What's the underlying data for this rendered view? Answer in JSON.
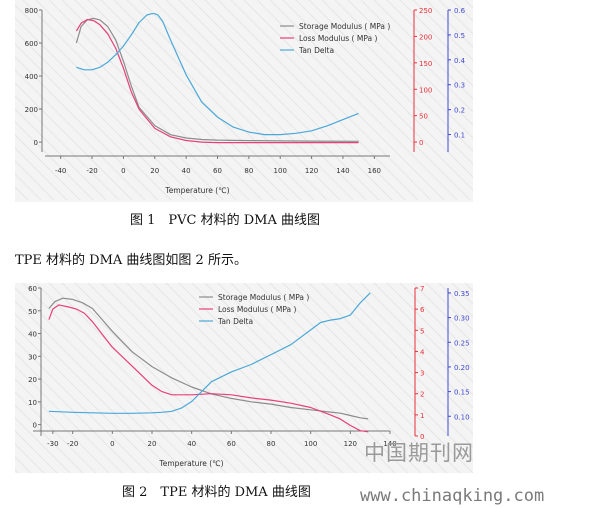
{
  "document": {
    "caption_1": "图 1　PVC 材料的 DMA 曲线图",
    "paragraph": "TPE 材料的 DMA 曲线图如图 2 所示。",
    "caption_2": "图 2　TPE 材料的 DMA 曲线图"
  },
  "watermark": {
    "site_cn": "中国期刊网",
    "site_url": "www.chinaqking.com"
  },
  "colors": {
    "storage": "#8c8c8c",
    "loss": "#e8407a",
    "tan": "#4aa8d8",
    "axis_red": "#e8303a",
    "axis_blue": "#4048d0"
  },
  "chart_data": [
    {
      "type": "line",
      "xlabel": "Temperature (℃)",
      "xlim": [
        -50,
        170
      ],
      "xticks": [
        "-40",
        "-20",
        "0",
        "20",
        "40",
        "60",
        "80",
        "100",
        "120",
        "140",
        "160"
      ],
      "left_axis": {
        "ylim": [
          -60,
          800
        ],
        "ticks": [
          "0",
          "200",
          "400",
          "600",
          "800"
        ]
      },
      "right_axis_1": {
        "ylim": [
          -18.75,
          250
        ],
        "ticks": [
          "0",
          "50",
          "100",
          "150",
          "200",
          "250"
        ]
      },
      "right_axis_2": {
        "ylim": [
          0.03,
          0.6
        ],
        "ticks": [
          "0.1",
          "0.2",
          "0.3",
          "0.4",
          "0.5",
          "0.6"
        ]
      },
      "series": [
        {
          "name": "Storage Modulus ( MPa )",
          "axis": "left",
          "x": [
            -30,
            -27,
            -23,
            -19,
            -15,
            -10,
            -5,
            0,
            5,
            10,
            20,
            30,
            40,
            50,
            60,
            80,
            100,
            120,
            150
          ],
          "values": [
            600,
            700,
            740,
            750,
            740,
            700,
            620,
            490,
            340,
            210,
            100,
            45,
            25,
            16,
            12,
            9,
            7,
            6,
            5
          ]
        },
        {
          "name": "Loss Modulus ( MPa )",
          "axis": "right_axis_1",
          "x": [
            -30,
            -27,
            -23,
            -19,
            -15,
            -10,
            -5,
            0,
            5,
            10,
            20,
            30,
            40,
            50,
            60,
            80,
            100,
            120,
            150
          ],
          "values": [
            210,
            225,
            232,
            230,
            222,
            205,
            178,
            140,
            95,
            62,
            26,
            10,
            3,
            0,
            -1,
            -1,
            -1,
            -1,
            -1
          ]
        },
        {
          "name": "Tan Delta",
          "axis": "right_axis_2",
          "x": [
            -30,
            -25,
            -20,
            -15,
            -10,
            -5,
            0,
            5,
            10,
            15,
            18,
            20,
            22,
            25,
            30,
            40,
            50,
            60,
            70,
            80,
            90,
            100,
            110,
            120,
            130,
            140,
            150
          ],
          "values": [
            0.37,
            0.36,
            0.36,
            0.37,
            0.39,
            0.42,
            0.455,
            0.5,
            0.55,
            0.58,
            0.585,
            0.585,
            0.58,
            0.555,
            0.48,
            0.34,
            0.23,
            0.17,
            0.13,
            0.11,
            0.1,
            0.1,
            0.105,
            0.115,
            0.135,
            0.16,
            0.185
          ]
        }
      ]
    },
    {
      "type": "line",
      "xlabel": "Temperature (℃)",
      "xlim": [
        -40,
        140
      ],
      "xticks": [
        "-30",
        "-20",
        "0",
        "20",
        "40",
        "60",
        "80",
        "100",
        "120",
        "140"
      ],
      "left_axis": {
        "ylim": [
          -5,
          60
        ],
        "ticks": [
          "0",
          "10",
          "20",
          "30",
          "40",
          "50",
          "60"
        ]
      },
      "right_axis_1": {
        "ylim": [
          0,
          7
        ],
        "ticks": [
          "0",
          "1",
          "2",
          "3",
          "4",
          "5",
          "6",
          "7"
        ]
      },
      "right_axis_2": {
        "ylim": [
          0.06,
          0.36
        ],
        "ticks": [
          "0.10",
          "0.15",
          "0.20",
          "0.25",
          "0.30",
          "0.35"
        ]
      },
      "series": [
        {
          "name": "Storage Modulus ( MPa )",
          "axis": "left",
          "x": [
            -32,
            -29,
            -25,
            -20,
            -15,
            -10,
            -5,
            0,
            10,
            20,
            30,
            40,
            50,
            60,
            70,
            80,
            90,
            100,
            110,
            115,
            120,
            125,
            129
          ],
          "values": [
            51,
            54,
            55.5,
            55,
            53.5,
            51,
            46,
            41,
            32,
            25.5,
            20.5,
            16.5,
            13.5,
            11.5,
            10,
            9,
            7.5,
            6.5,
            5.5,
            5,
            4,
            3,
            2.5
          ]
        },
        {
          "name": "Loss Modulus ( MPa )",
          "axis": "right_axis_1",
          "x": [
            -32,
            -30,
            -27,
            -22,
            -18,
            -14,
            -10,
            -5,
            0,
            10,
            20,
            25,
            30,
            40,
            50,
            60,
            70,
            80,
            90,
            100,
            110,
            115,
            120,
            125,
            129
          ],
          "values": [
            5.5,
            6.0,
            6.2,
            6.1,
            6.0,
            5.8,
            5.4,
            4.8,
            4.2,
            3.3,
            2.4,
            2.1,
            1.95,
            1.95,
            2.0,
            1.95,
            1.8,
            1.7,
            1.55,
            1.35,
            1.0,
            0.8,
            0.5,
            0.25,
            0.2
          ]
        },
        {
          "name": "Tan Delta",
          "axis": "right_axis_2",
          "x": [
            -32,
            -20,
            -10,
            0,
            10,
            20,
            25,
            30,
            35,
            40,
            45,
            50,
            55,
            60,
            70,
            80,
            90,
            100,
            105,
            110,
            115,
            120,
            125,
            130
          ],
          "values": [
            0.11,
            0.108,
            0.107,
            0.106,
            0.106,
            0.107,
            0.108,
            0.11,
            0.117,
            0.13,
            0.15,
            0.17,
            0.18,
            0.19,
            0.205,
            0.225,
            0.245,
            0.275,
            0.29,
            0.295,
            0.298,
            0.305,
            0.33,
            0.35
          ]
        }
      ]
    }
  ]
}
